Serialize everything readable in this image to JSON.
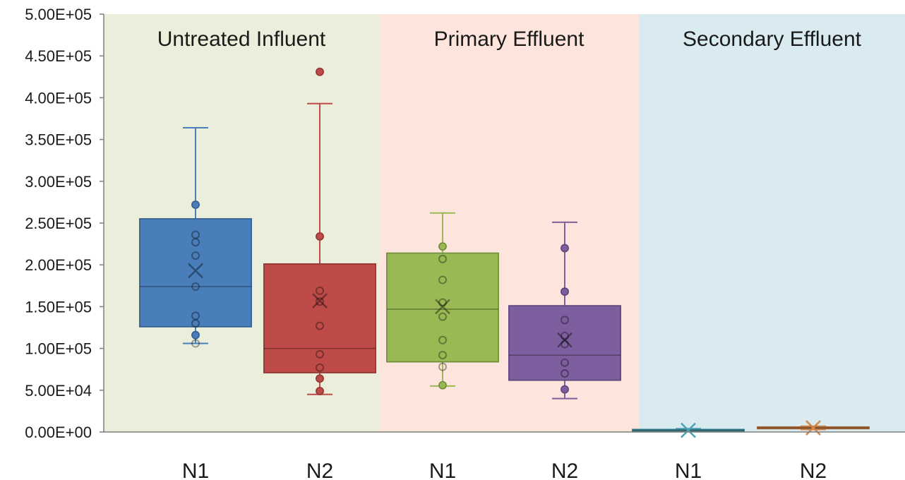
{
  "chart_data": {
    "type": "box",
    "title": "",
    "xlabel": "",
    "ylabel": "",
    "ylim": [
      0,
      500000
    ],
    "yticks": [
      "0.00E+00",
      "5.00E+04",
      "1.00E+05",
      "1.50E+05",
      "2.00E+05",
      "2.50E+05",
      "3.00E+05",
      "3.50E+05",
      "4.00E+05",
      "4.50E+05",
      "5.00E+05"
    ],
    "grid": false,
    "regions": [
      {
        "label": "Untreated Influent",
        "color": "#eaeedb"
      },
      {
        "label": "Primary Effluent",
        "color": "#fde4dc"
      },
      {
        "label": "Secondary Effluent",
        "color": "#d9ebf1"
      }
    ],
    "categories": [
      "N1",
      "N2",
      "N1",
      "N2",
      "N1",
      "N2"
    ],
    "boxes": [
      {
        "category": "N1",
        "region": "Untreated Influent",
        "color": "#4a7ebb",
        "min": 106000,
        "q1": 126000,
        "median": 174000,
        "q3": 255000,
        "max": 364000,
        "mean": 193000,
        "points": [
          106000,
          116000,
          130000,
          139000,
          174000,
          211000,
          227000,
          236000,
          272000
        ],
        "filled_points": [
          116000,
          272000
        ]
      },
      {
        "category": "N2",
        "region": "Untreated Influent",
        "color": "#be4b48",
        "min": 45000,
        "q1": 71000,
        "median": 100000,
        "q3": 201000,
        "max": 393000,
        "mean": 157000,
        "points": [
          49000,
          64000,
          77000,
          93000,
          127000,
          156000,
          169000,
          234000,
          431000
        ],
        "filled_points": [
          49000,
          64000,
          234000,
          431000
        ]
      },
      {
        "category": "N1",
        "region": "Primary Effluent",
        "color": "#98b954",
        "min": 55000,
        "q1": 84000,
        "median": 147000,
        "q3": 214000,
        "max": 262000,
        "mean": 150000,
        "points": [
          56000,
          78000,
          92000,
          110000,
          138000,
          155000,
          182000,
          207000,
          222000
        ],
        "filled_points": [
          56000,
          222000
        ]
      },
      {
        "category": "N2",
        "region": "Primary Effluent",
        "color": "#7d5fa0",
        "min": 40000,
        "q1": 62000,
        "median": 92000,
        "q3": 151000,
        "max": 251000,
        "mean": 110000,
        "points": [
          51000,
          70000,
          83000,
          105000,
          115000,
          134000,
          168000,
          220000
        ],
        "filled_points": [
          51000,
          168000,
          220000
        ]
      },
      {
        "category": "N1",
        "region": "Secondary Effluent",
        "color": "#4aa3b5",
        "min": 500,
        "q1": 1000,
        "median": 2000,
        "q3": 3000,
        "max": 4000,
        "mean": 2000,
        "points": [],
        "filled_points": []
      },
      {
        "category": "N2",
        "region": "Secondary Effluent",
        "color": "#d4874a",
        "min": 3000,
        "q1": 4000,
        "median": 5000,
        "q3": 6000,
        "max": 7000,
        "mean": 5000,
        "points": [],
        "filled_points": []
      }
    ]
  }
}
